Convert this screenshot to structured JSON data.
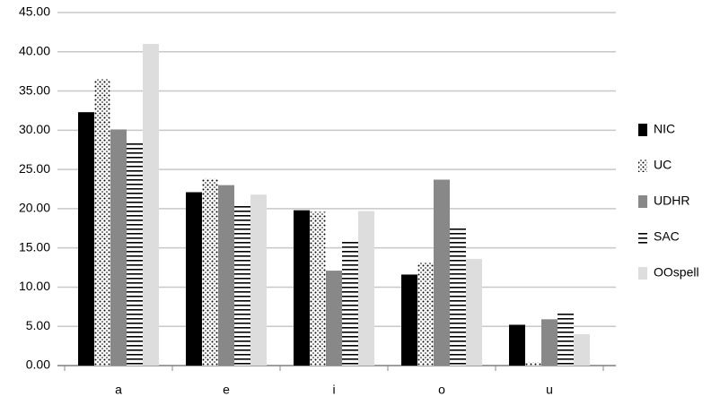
{
  "chart_data": {
    "type": "bar",
    "categories": [
      "a",
      "e",
      "i",
      "o",
      "u"
    ],
    "series": [
      {
        "name": "NIC",
        "color": "#000000",
        "pattern": "solid",
        "values": [
          32.3,
          22.1,
          19.8,
          11.6,
          5.2
        ]
      },
      {
        "name": "UC",
        "color": "#000000",
        "pattern": "dots",
        "values": [
          36.5,
          23.8,
          19.6,
          13.2,
          0.4
        ]
      },
      {
        "name": "UDHR",
        "color": "#888888",
        "pattern": "solid",
        "values": [
          30.1,
          23.0,
          12.1,
          23.7,
          5.9
        ]
      },
      {
        "name": "SAC",
        "color": "#000000",
        "pattern": "stripes",
        "values": [
          28.6,
          20.4,
          15.8,
          17.6,
          6.8
        ]
      },
      {
        "name": "OOspell",
        "color": "#dddddd",
        "pattern": "solid",
        "values": [
          41.0,
          21.8,
          19.7,
          13.6,
          4.0
        ]
      }
    ],
    "ylim": [
      0,
      45
    ],
    "yticks": [
      {
        "value": 0,
        "label": "0.00"
      },
      {
        "value": 5,
        "label": "5.00"
      },
      {
        "value": 10,
        "label": "10.00"
      },
      {
        "value": 15,
        "label": "15.00"
      },
      {
        "value": 20,
        "label": "20.00"
      },
      {
        "value": 25,
        "label": "25.00"
      },
      {
        "value": 30,
        "label": "30.00"
      },
      {
        "value": 35,
        "label": "35.00"
      },
      {
        "value": 40,
        "label": "40.00"
      },
      {
        "value": 45,
        "label": "45.00"
      }
    ],
    "grid": true,
    "legend": "right"
  }
}
